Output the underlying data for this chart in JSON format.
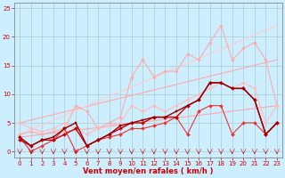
{
  "bg_color": "#cceeff",
  "grid_color": "#aacccc",
  "xlabel": "Vent moyen/en rafales ( km/h )",
  "xlabel_color": "#cc0000",
  "xlabel_fontsize": 6,
  "tick_color": "#cc0000",
  "tick_fontsize": 5,
  "xlim": [
    -0.5,
    23.5
  ],
  "ylim": [
    -1,
    26
  ],
  "yticks": [
    0,
    5,
    10,
    15,
    20,
    25
  ],
  "xticks": [
    0,
    1,
    2,
    3,
    4,
    5,
    6,
    7,
    8,
    9,
    10,
    11,
    12,
    13,
    14,
    15,
    16,
    17,
    18,
    19,
    20,
    21,
    22,
    23
  ],
  "lines": [
    {
      "x": [
        0,
        23
      ],
      "y": [
        2.5,
        8
      ],
      "color": "#ffaaaa",
      "lw": 0.8,
      "marker": null,
      "ms": 0
    },
    {
      "x": [
        0,
        23
      ],
      "y": [
        5,
        16
      ],
      "color": "#ffaaaa",
      "lw": 0.8,
      "marker": null,
      "ms": 0
    },
    {
      "x": [
        0,
        23
      ],
      "y": [
        3,
        22
      ],
      "color": "#ffcccc",
      "lw": 0.8,
      "marker": null,
      "ms": 0
    },
    {
      "x": [
        0,
        1,
        2,
        3,
        4,
        5,
        6,
        7,
        8,
        9,
        10,
        11,
        12,
        13,
        14,
        15,
        16,
        17,
        18,
        19,
        20,
        21,
        22,
        23
      ],
      "y": [
        3,
        3.5,
        3,
        3.5,
        4,
        8,
        7,
        4,
        5,
        6,
        13,
        16,
        13,
        14,
        14,
        17,
        16,
        19,
        22,
        16,
        18,
        19,
        16,
        8
      ],
      "color": "#ffaaaa",
      "lw": 0.8,
      "marker": "D",
      "ms": 1.8
    },
    {
      "x": [
        0,
        1,
        2,
        3,
        4,
        5,
        6,
        7,
        8,
        9,
        10,
        11,
        12,
        13,
        14,
        15,
        16,
        17,
        18,
        19,
        20,
        21,
        22,
        23
      ],
      "y": [
        5,
        4,
        3.5,
        4,
        5,
        4,
        3,
        4,
        4.5,
        5,
        8,
        7,
        8,
        7,
        8,
        9,
        10,
        11,
        12,
        11,
        12,
        11,
        5,
        8
      ],
      "color": "#ffbbbb",
      "lw": 0.8,
      "marker": "D",
      "ms": 1.8
    },
    {
      "x": [
        0,
        1,
        2,
        3,
        4,
        5,
        6,
        7,
        8,
        9,
        10,
        11,
        12,
        13,
        14,
        15,
        16,
        17,
        18,
        19,
        20,
        21,
        22,
        23
      ],
      "y": [
        2.5,
        0,
        1,
        2,
        4,
        0,
        1,
        2,
        2.5,
        3,
        4,
        4,
        4.5,
        5,
        6,
        3,
        7,
        8,
        8,
        3,
        5,
        5,
        3,
        5
      ],
      "color": "#ee3333",
      "lw": 0.8,
      "marker": "D",
      "ms": 2.0
    },
    {
      "x": [
        0,
        1,
        2,
        3,
        4,
        5,
        6,
        7,
        8,
        9,
        10,
        11,
        12,
        13,
        14,
        15,
        16,
        17,
        18,
        19,
        20,
        21,
        22,
        23
      ],
      "y": [
        2,
        1,
        2,
        2,
        3,
        4,
        1,
        2,
        3,
        4,
        5,
        5,
        6,
        6,
        6,
        8,
        9,
        12,
        12,
        11,
        11,
        9,
        3,
        5
      ],
      "color": "#cc0000",
      "lw": 1.0,
      "marker": "D",
      "ms": 2.0
    },
    {
      "x": [
        0,
        1,
        2,
        3,
        4,
        5,
        6,
        7,
        8,
        9,
        10,
        11,
        12,
        13,
        14,
        15,
        16,
        17,
        18,
        19,
        20,
        21,
        22,
        23
      ],
      "y": [
        2.5,
        1,
        2,
        2.5,
        4,
        5,
        1,
        2,
        3,
        4.5,
        5,
        5.5,
        6,
        6,
        7,
        8,
        9,
        12,
        12,
        11,
        11,
        9,
        3,
        5
      ],
      "color": "#990000",
      "lw": 1.0,
      "marker": "s",
      "ms": 2.0
    }
  ]
}
